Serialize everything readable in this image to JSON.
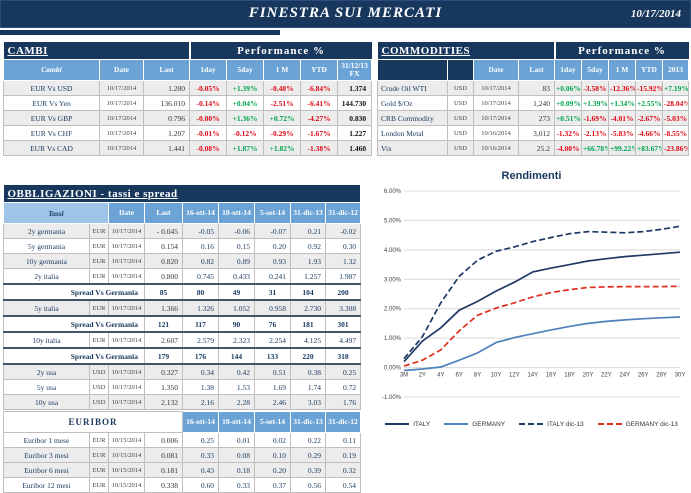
{
  "header": {
    "title": "FINESTRA SUI MERCATI",
    "date": "10/17/2014"
  },
  "cambi": {
    "title": "CAMBI",
    "perf_header": "Performance  %",
    "columns": [
      "Cambi",
      "Date",
      "Last",
      "1day",
      "5day",
      "1 M",
      "YTD",
      "31/12/13\nFX"
    ],
    "rows": [
      {
        "label": "EUR Vs USD",
        "date": "10/17/2014",
        "last": "1.280",
        "perf": [
          "-0.05%",
          "+1.39%",
          "-0.48%",
          "-6.84%"
        ],
        "fx": "1.374"
      },
      {
        "label": "EUR Vs Yen",
        "date": "10/17/2014",
        "last": "136.010",
        "perf": [
          "-0.14%",
          "+0.04%",
          "-2.51%",
          "-6.41%"
        ],
        "fx": "144.730"
      },
      {
        "label": "EUR Vs GBP",
        "date": "10/17/2014",
        "last": "0.796",
        "perf": [
          "-0.00%",
          "+1.36%",
          "+0.72%",
          "-4.27%"
        ],
        "fx": "0.830"
      },
      {
        "label": "EUR Vs CHF",
        "date": "10/17/2014",
        "last": "1.207",
        "perf": [
          "-0.01%",
          "-0.12%",
          "-0.29%",
          "-1.67%"
        ],
        "fx": "1.227"
      },
      {
        "label": "EUR Vs CAD",
        "date": "10/17/2014",
        "last": "1.441",
        "perf": [
          "-0.08%",
          "+1.87%",
          "+1.82%",
          "-1.38%"
        ],
        "fx": "1.460"
      }
    ]
  },
  "commodities": {
    "title": "COMMODITIES",
    "perf_header": "Performance  %",
    "columns": [
      "",
      "",
      "Date",
      "Last",
      "1day",
      "5day",
      "1 M",
      "YTD",
      "2013"
    ],
    "rows": [
      {
        "label": "Crude Oil WTI",
        "ccy": "USD",
        "date": "10/17/2014",
        "last": "83",
        "perf": [
          "+0.06%",
          "-3.58%",
          "-12.36%",
          "-15.92%",
          "+7.19%"
        ]
      },
      {
        "label": "Gold $/Oz",
        "ccy": "USD",
        "date": "10/17/2014",
        "last": "1,240",
        "perf": [
          "+0.09%",
          "+1.39%",
          "+1.34%",
          "+2.55%",
          "-28.04%"
        ]
      },
      {
        "label": "CRB Commodity",
        "ccy": "USD",
        "date": "10/17/2014",
        "last": "273",
        "perf": [
          "+0.51%",
          "-1.69%",
          "-4.01%",
          "-2.67%",
          "-5.03%"
        ]
      },
      {
        "label": "London Metal",
        "ccy": "USD",
        "date": "10/16/2014",
        "last": "3,012",
        "perf": [
          "-1.32%",
          "-2.13%",
          "-5.83%",
          "-4.66%",
          "-8.55%"
        ]
      },
      {
        "label": "Vix",
        "ccy": "USD",
        "date": "10/16/2014",
        "last": "25.2",
        "perf": [
          "-4.00%",
          "+66.78%",
          "+99.22%",
          "+83.67%",
          "-23.86%"
        ]
      }
    ]
  },
  "obbligazioni": {
    "title": "OBBLIGAZIONI - tassi e spread",
    "first_column": "Tassi",
    "columns": [
      "Date",
      "Last",
      "16-ott-14",
      "10-ott-14",
      "5-set-14",
      "31-dic-13",
      "31-dic-12"
    ],
    "rows": [
      {
        "type": "data",
        "label": "2y germania",
        "ccy": "EUR",
        "date": "10/17/2014",
        "last": "- 0.045",
        "values": [
          "-0.05",
          "-0.06",
          "-0.07",
          "0.21",
          "-0.02"
        ]
      },
      {
        "type": "data",
        "label": "5y germania",
        "ccy": "EUR",
        "date": "10/17/2014",
        "last": "0.154",
        "values": [
          "0.16",
          "0.15",
          "0.20",
          "0.92",
          "0.30"
        ]
      },
      {
        "type": "data",
        "label": "10y germania",
        "ccy": "EUR",
        "date": "10/17/2014",
        "last": "0.820",
        "values": [
          "0.82",
          "0.89",
          "0.93",
          "1.93",
          "1.32"
        ]
      },
      {
        "type": "data",
        "label": "2y italia",
        "ccy": "EUR",
        "date": "10/17/2014",
        "last": "0.800",
        "values": [
          "0.745",
          "0.433",
          "0.241",
          "1.257",
          "1.987"
        ]
      },
      {
        "type": "spread",
        "label": "Spread Vs Germania",
        "last": "85",
        "values": [
          "80",
          "49",
          "31",
          "104",
          "200"
        ]
      },
      {
        "type": "data",
        "label": "5y italia",
        "ccy": "EUR",
        "date": "10/17/2014",
        "last": "1.366",
        "values": [
          "1.326",
          "1.052",
          "0.958",
          "2.730",
          "3.308"
        ]
      },
      {
        "type": "spread",
        "label": "Spread Vs Germania",
        "last": "121",
        "values": [
          "117",
          "90",
          "76",
          "181",
          "301"
        ]
      },
      {
        "type": "data",
        "label": "10y italia",
        "ccy": "EUR",
        "date": "10/17/2014",
        "last": "2.607",
        "values": [
          "2.579",
          "2.323",
          "2.254",
          "4.125",
          "4.497"
        ]
      },
      {
        "type": "spread",
        "label": "Spread Vs Germania",
        "last": "179",
        "values": [
          "176",
          "144",
          "133",
          "220",
          "318"
        ]
      },
      {
        "type": "data",
        "label": "2y usa",
        "ccy": "USD",
        "date": "10/17/2014",
        "last": "0.327",
        "values": [
          "0.34",
          "0.42",
          "0.51",
          "0.38",
          "0.25"
        ]
      },
      {
        "type": "data",
        "label": "5y usa",
        "ccy": "USD",
        "date": "10/17/2014",
        "last": "1.350",
        "values": [
          "1.38",
          "1.53",
          "1.69",
          "1.74",
          "0.72"
        ]
      },
      {
        "type": "data",
        "label": "10y usa",
        "ccy": "USD",
        "date": "10/17/2014",
        "last": "2.132",
        "values": [
          "2.16",
          "2.28",
          "2.46",
          "3.03",
          "1.76"
        ]
      }
    ]
  },
  "euribor": {
    "title": "EURIBOR",
    "columns": [
      "16-ott-14",
      "10-ott-14",
      "5-set-14",
      "31-dic-13",
      "31-dic-12"
    ],
    "rows": [
      {
        "label": "Euribor 1 mese",
        "ccy": "EUR",
        "date": "10/15/2014",
        "last": "0.006",
        "values": [
          "0.25",
          "0.01",
          "0.02",
          "0.22",
          "0.11"
        ]
      },
      {
        "label": "Euribor 3 mesi",
        "ccy": "EUR",
        "date": "10/15/2014",
        "last": "0.081",
        "values": [
          "0.33",
          "0.08",
          "0.10",
          "0.29",
          "0.19"
        ]
      },
      {
        "label": "Euribor 6 mesi",
        "ccy": "EUR",
        "date": "10/15/2014",
        "last": "0.181",
        "values": [
          "0.43",
          "0.18",
          "0.20",
          "0.39",
          "0.32"
        ]
      },
      {
        "label": "Euribor 12 mesi",
        "ccy": "EUR",
        "date": "10/15/2014",
        "last": "0.338",
        "values": [
          "0.60",
          "0.33",
          "0.37",
          "0.56",
          "0.54"
        ]
      }
    ]
  },
  "chart_data": {
    "type": "line",
    "title": "Rendimenti",
    "x": [
      "3M",
      "2Y",
      "4Y",
      "6Y",
      "8Y",
      "10Y",
      "12Y",
      "14Y",
      "16Y",
      "18Y",
      "20Y",
      "22Y",
      "24Y",
      "26Y",
      "28Y",
      "30Y"
    ],
    "ylim": [
      -1,
      6
    ],
    "yticks": [
      "6.00%",
      "5.00%",
      "4.00%",
      "3.00%",
      "2.00%",
      "1.00%",
      "0.00%",
      "-1.00%"
    ],
    "grid": true,
    "legend_position": "bottom",
    "series": [
      {
        "name": "ITALY",
        "style": "solid",
        "color": "#1F3864",
        "values": [
          0.2,
          0.9,
          1.35,
          1.95,
          2.25,
          2.6,
          2.9,
          3.25,
          3.38,
          3.5,
          3.62,
          3.7,
          3.77,
          3.82,
          3.87,
          3.92
        ]
      },
      {
        "name": "GERMANY",
        "style": "solid",
        "color": "#4F81BD",
        "values": [
          -0.1,
          -0.05,
          0.02,
          0.25,
          0.5,
          0.85,
          1.02,
          1.15,
          1.28,
          1.4,
          1.5,
          1.57,
          1.62,
          1.66,
          1.69,
          1.72
        ]
      },
      {
        "name": "ITALY dic-13",
        "style": "dashed",
        "color": "#1F3864",
        "values": [
          0.3,
          1.05,
          2.2,
          3.1,
          3.65,
          3.95,
          4.1,
          4.28,
          4.42,
          4.55,
          4.62,
          4.6,
          4.58,
          4.62,
          4.7,
          4.8
        ]
      },
      {
        "name": "GERMANY dic-13",
        "style": "dashed",
        "color": "#E0301E",
        "values": [
          0.05,
          0.25,
          0.6,
          1.25,
          1.78,
          2.02,
          2.2,
          2.4,
          2.55,
          2.65,
          2.72,
          2.74,
          2.75,
          2.75,
          2.75,
          2.76
        ]
      }
    ]
  },
  "colors": {
    "navy": "#17375D",
    "header_blue": "#6BA3D6",
    "header_light_blue": "#9EC4E7",
    "positive": "#00A550",
    "negative": "#E00613",
    "row_alt": "#ECECEC",
    "grid": "#D9D9D9"
  }
}
